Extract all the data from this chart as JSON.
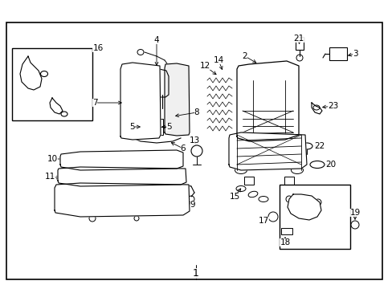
{
  "bg_color": "#ffffff",
  "border_color": "#000000",
  "line_color": "#000000",
  "title": "1",
  "fig_width": 4.89,
  "fig_height": 3.6,
  "dpi": 100
}
